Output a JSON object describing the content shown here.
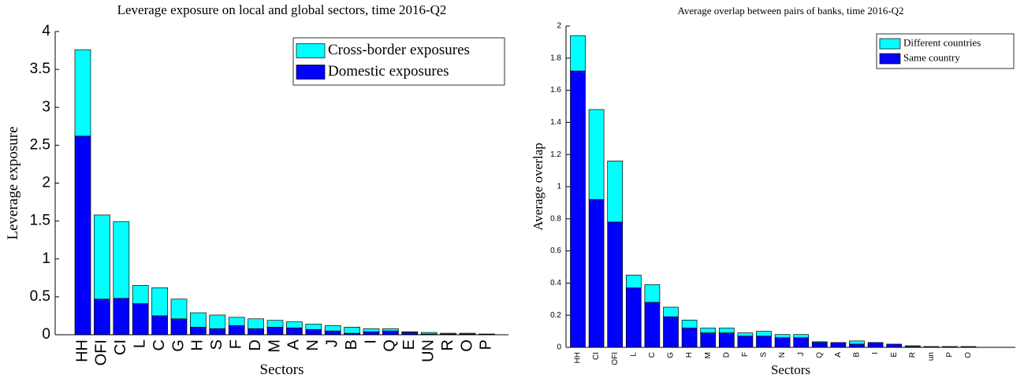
{
  "chart_data": [
    {
      "type": "bar",
      "stacked": true,
      "title": "Leverage exposure on local and global sectors, time 2016-Q2",
      "x_label": "Sectors",
      "y_label": "Leverage exposure",
      "categories": [
        "HH",
        "OFI",
        "CI",
        "L",
        "C",
        "G",
        "H",
        "S",
        "F",
        "D",
        "M",
        "A",
        "N",
        "J",
        "B",
        "I",
        "Q",
        "E",
        "UN",
        "R",
        "O",
        "P"
      ],
      "series": [
        {
          "name": "Domestic exposures",
          "color": "#0000ff",
          "values": [
            2.62,
            0.47,
            0.48,
            0.41,
            0.25,
            0.21,
            0.1,
            0.08,
            0.12,
            0.08,
            0.1,
            0.09,
            0.07,
            0.05,
            0.02,
            0.04,
            0.05,
            0.03,
            0.01,
            0.01,
            0.01,
            0.005
          ]
        },
        {
          "name": "Cross-border exposures",
          "color": "#00ffff",
          "values": [
            1.14,
            1.11,
            1.01,
            0.24,
            0.37,
            0.26,
            0.19,
            0.18,
            0.11,
            0.13,
            0.09,
            0.08,
            0.07,
            0.07,
            0.08,
            0.04,
            0.03,
            0.01,
            0.02,
            0.01,
            0.01,
            0.005
          ]
        }
      ],
      "ylim": [
        0,
        4
      ],
      "yticks": [
        0,
        0.5,
        1,
        1.5,
        2,
        2.5,
        3,
        3.5,
        4
      ],
      "legend": "upper right"
    },
    {
      "type": "bar",
      "stacked": true,
      "title": "Average overlap between pairs of banks, time 2016-Q2",
      "x_label": "Sectors",
      "y_label": "Average overlap",
      "categories": [
        "HH",
        "CI",
        "OFI",
        "L",
        "C",
        "G",
        "H",
        "M",
        "D",
        "F",
        "S",
        "N",
        "J",
        "Q",
        "A",
        "B",
        "I",
        "E",
        "R",
        "un",
        "P",
        "O"
      ],
      "series": [
        {
          "name": "Same country",
          "color": "#0000ff",
          "values": [
            1.72,
            0.92,
            0.78,
            0.37,
            0.28,
            0.19,
            0.12,
            0.09,
            0.09,
            0.07,
            0.07,
            0.06,
            0.06,
            0.03,
            0.03,
            0.02,
            0.03,
            0.02,
            0.005,
            0.005,
            0.003,
            0.003
          ]
        },
        {
          "name": "Different countries",
          "color": "#00ffff",
          "values": [
            0.22,
            0.56,
            0.38,
            0.08,
            0.11,
            0.06,
            0.05,
            0.03,
            0.03,
            0.02,
            0.03,
            0.02,
            0.02,
            0.005,
            0,
            0.02,
            0,
            0,
            0.005,
            0,
            0.002,
            0.002
          ]
        }
      ],
      "ylim": [
        0,
        2
      ],
      "yticks": [
        0,
        0.2,
        0.4,
        0.6,
        0.8,
        1,
        1.2,
        1.4,
        1.6,
        1.8,
        2
      ],
      "legend": "upper right"
    }
  ]
}
